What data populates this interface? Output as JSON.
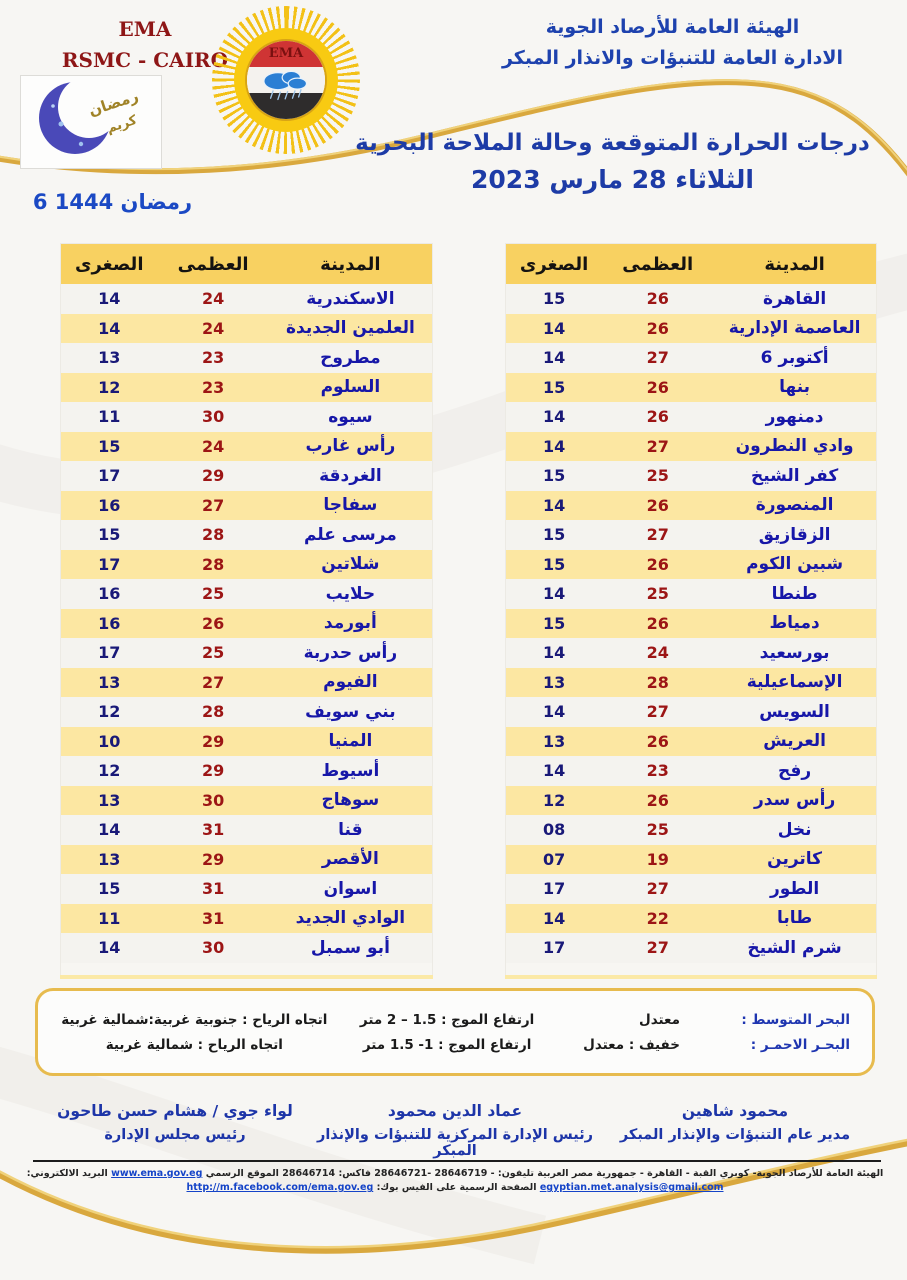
{
  "header": {
    "org_en_line1": "EMA",
    "org_en_line2": "RSMC - CAIRO",
    "org_ar_line1": "الهيئة العامة للأرصاد الجوية",
    "org_ar_line2": "الادارة العامة للتنبؤات والانذار المبكر",
    "logo_text": "EMA",
    "ramadan_word1": "رمضان",
    "ramadan_word2": "كريم",
    "hijri_date": "6 رمضان 1444",
    "title_line1": "درجات الحرارة المتوقعة وحالة الملاحة البحرية",
    "title_line2": "الثلاثاء 28 مارس 2023"
  },
  "table_headers": {
    "city": "المدينة",
    "max": "العظمى",
    "min": "الصغرى"
  },
  "right_table": {
    "rows": [
      {
        "city": "القاهرة",
        "max": "26",
        "min": "15"
      },
      {
        "city": "العاصمة الإدارية",
        "max": "26",
        "min": "14"
      },
      {
        "city": "6 أكتوبر",
        "max": "27",
        "min": "14"
      },
      {
        "city": "بنها",
        "max": "26",
        "min": "15"
      },
      {
        "city": "دمنهور",
        "max": "26",
        "min": "14"
      },
      {
        "city": "وادي النطرون",
        "max": "27",
        "min": "14"
      },
      {
        "city": "كفر الشيخ",
        "max": "25",
        "min": "15"
      },
      {
        "city": "المنصورة",
        "max": "26",
        "min": "14"
      },
      {
        "city": "الزقازيق",
        "max": "27",
        "min": "15"
      },
      {
        "city": "شبين الكوم",
        "max": "26",
        "min": "15"
      },
      {
        "city": "طنطا",
        "max": "25",
        "min": "14"
      },
      {
        "city": "دمياط",
        "max": "26",
        "min": "15"
      },
      {
        "city": "بورسعيد",
        "max": "24",
        "min": "14"
      },
      {
        "city": "الإسماعيلية",
        "max": "28",
        "min": "13"
      },
      {
        "city": "السويس",
        "max": "27",
        "min": "14"
      },
      {
        "city": "العريش",
        "max": "26",
        "min": "13"
      },
      {
        "city": "رفح",
        "max": "23",
        "min": "14"
      },
      {
        "city": "رأس سدر",
        "max": "26",
        "min": "12"
      },
      {
        "city": "نخل",
        "max": "25",
        "min": "08"
      },
      {
        "city": "كاترين",
        "max": "19",
        "min": "07"
      },
      {
        "city": "الطور",
        "max": "27",
        "min": "17"
      },
      {
        "city": "طابا",
        "max": "22",
        "min": "14"
      },
      {
        "city": "شرم الشيخ",
        "max": "27",
        "min": "17"
      }
    ]
  },
  "left_table": {
    "rows": [
      {
        "city": "الاسكندرية",
        "max": "24",
        "min": "14"
      },
      {
        "city": "العلمين الجديدة",
        "max": "24",
        "min": "14"
      },
      {
        "city": "مطروح",
        "max": "23",
        "min": "13"
      },
      {
        "city": "السلوم",
        "max": "23",
        "min": "12"
      },
      {
        "city": "سيوه",
        "max": "30",
        "min": "11"
      },
      {
        "city": "رأس غارب",
        "max": "24",
        "min": "15"
      },
      {
        "city": "الغردقة",
        "max": "29",
        "min": "17"
      },
      {
        "city": "سفاجا",
        "max": "27",
        "min": "16"
      },
      {
        "city": "مرسى علم",
        "max": "28",
        "min": "15"
      },
      {
        "city": "شلاتين",
        "max": "28",
        "min": "17"
      },
      {
        "city": "حلايب",
        "max": "25",
        "min": "16"
      },
      {
        "city": "أبورمد",
        "max": "26",
        "min": "16"
      },
      {
        "city": "رأس حدربة",
        "max": "25",
        "min": "17"
      },
      {
        "city": "الفيوم",
        "max": "27",
        "min": "13"
      },
      {
        "city": "بني سويف",
        "max": "28",
        "min": "12"
      },
      {
        "city": "المنيا",
        "max": "29",
        "min": "10"
      },
      {
        "city": "أسيوط",
        "max": "29",
        "min": "12"
      },
      {
        "city": "سوهاج",
        "max": "30",
        "min": "13"
      },
      {
        "city": "قنا",
        "max": "31",
        "min": "14"
      },
      {
        "city": "الأقصر",
        "max": "29",
        "min": "13"
      },
      {
        "city": "اسوان",
        "max": "31",
        "min": "15"
      },
      {
        "city": "الوادي الجديد",
        "max": "31",
        "min": "11"
      },
      {
        "city": "أبو سمبل",
        "max": "30",
        "min": "14"
      }
    ]
  },
  "marine": {
    "med_label": "البحر المتوسط :",
    "med_state": "معتدل",
    "med_wave": "ارتفاع الموج : 1.5 – 2 متر",
    "med_wind": "اتجاه الرياح : جنوبية غربية:شمالية غربية",
    "red_label": "البحـر الاحمـر :",
    "red_state": "خفيف : معتدل",
    "red_wave": "ارتفاع الموج : 1- 1.5 متر",
    "red_wind": "اتجاه الرياح : شمالية غربية"
  },
  "signatures": [
    {
      "name": "محمود شاهين",
      "title": "مدير عام التنبؤات والإنذار المبكر"
    },
    {
      "name": "عماد الدين محمود",
      "title": "رئيس الإدارة المركزية للتنبؤات والإنذار المبكر"
    },
    {
      "name": "لواء جوي / هشام حسن طاحون",
      "title": "رئيس مجلس الإدارة"
    }
  ],
  "footer": {
    "address": "الهيئة العامة للأرصاد الجوية- كوبري القبة - القاهرة - جمهورية مصر العربية تليفون: - 28646719 -28646721 فاكس: 28646714 الموقع الرسمي",
    "site": "www.ema.gov.eg",
    "email_label": "البريد الالكتروني:",
    "email": "egyptian.met.analysis@gmail.com",
    "fb_label": "الصفحة الرسمية على الفيس بوك:",
    "fb": "http://m.facebook.com/ema.gov.eg"
  },
  "colors": {
    "gold_accent": "#d9a83e",
    "header_row_bg": "#f8d161",
    "row_yellow": "#fce7a2",
    "row_light": "#f4f3ef",
    "city_text": "#1717a8",
    "max_text": "#9c1515",
    "min_text": "#191978",
    "title_text": "#1d3ba6",
    "org_en_text": "#8e1616"
  }
}
